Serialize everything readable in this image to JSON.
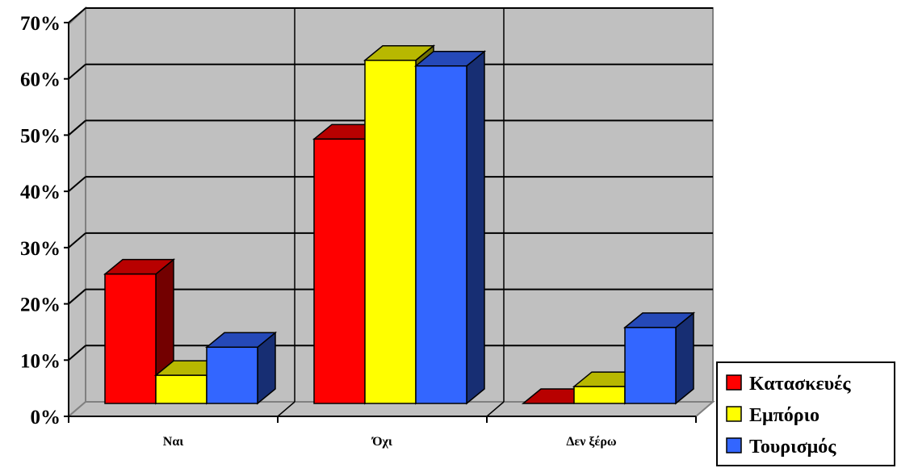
{
  "chart_data": {
    "type": "bar",
    "style": "3d-clustered-column",
    "categories": [
      "Ναι",
      "Όχι",
      "Δεν ξέρω"
    ],
    "series": [
      {
        "name": "Κατασκευές",
        "values": [
          0.23,
          0.47,
          0.0
        ],
        "color": "#ff0000"
      },
      {
        "name": "Εμπόριο",
        "values": [
          0.05,
          0.61,
          0.03
        ],
        "color": "#ffff00"
      },
      {
        "name": "Τουρισμός",
        "values": [
          0.1,
          0.6,
          0.135
        ],
        "color": "#3366ff"
      }
    ],
    "ylim": [
      0,
      0.7
    ],
    "y_ticks": [
      "0%",
      "10%",
      "20%",
      "30%",
      "40%",
      "50%",
      "60%",
      "70%"
    ],
    "title": "",
    "xlabel": "",
    "ylabel": "",
    "grid": true,
    "legend_position": "bottom-right",
    "wall_color": "#c0c0c0"
  }
}
